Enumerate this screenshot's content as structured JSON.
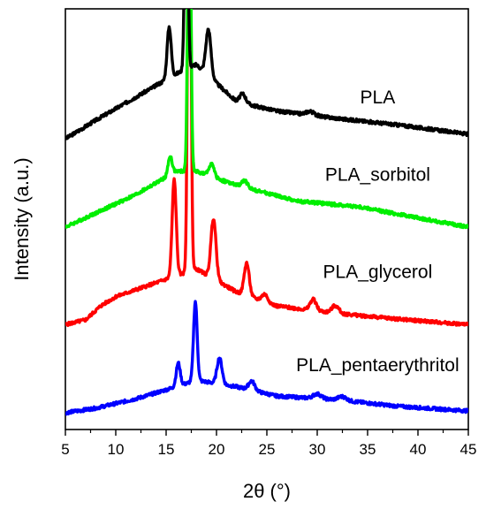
{
  "chart_data": {
    "type": "line",
    "title": "",
    "xlabel": "2θ (°)",
    "ylabel": "Intensity (a.u.)",
    "xlim": [
      5,
      45
    ],
    "xticks": [
      5,
      10,
      15,
      20,
      25,
      30,
      35,
      40,
      45
    ],
    "yticks_shown": false,
    "grid": false,
    "legend": "none",
    "series": [
      {
        "name": "PLA",
        "color": "#000000",
        "offset": 2.95,
        "peaks": [
          [
            15.3,
            0.55,
            0.2
          ],
          [
            17.0,
            2.7,
            0.15
          ],
          [
            19.2,
            0.5,
            0.25
          ],
          [
            22.6,
            0.1,
            0.3
          ],
          [
            29.3,
            0.04,
            0.4
          ]
        ],
        "background": [
          [
            5,
            0.0
          ],
          [
            8,
            0.2
          ],
          [
            12,
            0.45
          ],
          [
            16,
            0.7
          ],
          [
            18,
            0.8
          ],
          [
            22,
            0.4
          ],
          [
            26,
            0.3
          ],
          [
            32,
            0.22
          ],
          [
            38,
            0.15
          ],
          [
            45,
            0.05
          ]
        ]
      },
      {
        "name": "PLA_sorbitol",
        "color": "#00ee00",
        "offset": 2.0,
        "peaks": [
          [
            15.4,
            0.2,
            0.2
          ],
          [
            17.3,
            3.6,
            0.15
          ],
          [
            19.5,
            0.14,
            0.25
          ],
          [
            22.8,
            0.07,
            0.3
          ]
        ],
        "background": [
          [
            5,
            0.0
          ],
          [
            8,
            0.15
          ],
          [
            12,
            0.35
          ],
          [
            16,
            0.6
          ],
          [
            18,
            0.6
          ],
          [
            22,
            0.45
          ],
          [
            28,
            0.28
          ],
          [
            34,
            0.22
          ],
          [
            40,
            0.1
          ],
          [
            45,
            0.0
          ]
        ]
      },
      {
        "name": "PLA_glycerol",
        "color": "#ff0000",
        "offset": 0.95,
        "peaks": [
          [
            15.8,
            1.05,
            0.2
          ],
          [
            17.3,
            5.5,
            0.15
          ],
          [
            19.7,
            0.65,
            0.25
          ],
          [
            23.0,
            0.35,
            0.25
          ],
          [
            24.8,
            0.08,
            0.3
          ],
          [
            29.6,
            0.12,
            0.3
          ],
          [
            31.8,
            0.08,
            0.35
          ]
        ],
        "background": [
          [
            5,
            0.0
          ],
          [
            7,
            0.05
          ],
          [
            8.5,
            0.2
          ],
          [
            10,
            0.3
          ],
          [
            14,
            0.45
          ],
          [
            18,
            0.6
          ],
          [
            22,
            0.35
          ],
          [
            26,
            0.2
          ],
          [
            32,
            0.12
          ],
          [
            38,
            0.06
          ],
          [
            45,
            0.0
          ]
        ]
      },
      {
        "name": "PLA_pentaerythritol",
        "color": "#0000ff",
        "offset": 0.0,
        "peaks": [
          [
            16.2,
            0.25,
            0.2
          ],
          [
            17.9,
            0.85,
            0.18
          ],
          [
            20.3,
            0.28,
            0.25
          ],
          [
            23.5,
            0.1,
            0.3
          ],
          [
            30.0,
            0.05,
            0.4
          ],
          [
            32.5,
            0.04,
            0.4
          ]
        ],
        "background": [
          [
            5,
            0.0
          ],
          [
            8,
            0.05
          ],
          [
            12,
            0.15
          ],
          [
            16,
            0.28
          ],
          [
            18,
            0.35
          ],
          [
            22,
            0.28
          ],
          [
            26,
            0.18
          ],
          [
            32,
            0.14
          ],
          [
            38,
            0.07
          ],
          [
            45,
            0.02
          ]
        ]
      }
    ],
    "ylim": [
      -0.18,
      4.35
    ]
  }
}
